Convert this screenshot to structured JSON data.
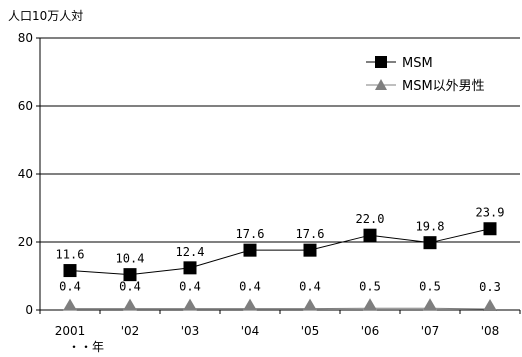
{
  "chart_data": {
    "type": "line",
    "ylabel": "人口10万人対",
    "xlabel": "年",
    "xlabel_prefix": "・・",
    "categories": [
      "2001",
      "'02",
      "'03",
      "'04",
      "'05",
      "'06",
      "'07",
      "'08"
    ],
    "ylim": [
      0,
      80
    ],
    "yticks": [
      0,
      20,
      40,
      60,
      80
    ],
    "grid": true,
    "legend_position": "top-right",
    "series": [
      {
        "name": "MSM",
        "marker": "square",
        "color": "#000000",
        "values": [
          11.6,
          10.4,
          12.4,
          17.6,
          17.6,
          22.0,
          19.8,
          23.9
        ],
        "labels": [
          "11.6",
          "10.4",
          "12.4",
          "17.6",
          "17.6",
          "22.0",
          "19.8",
          "23.9"
        ]
      },
      {
        "name": "MSM以外男性",
        "marker": "triangle",
        "color": "#7f7f7f",
        "values": [
          0.4,
          0.4,
          0.4,
          0.4,
          0.4,
          0.5,
          0.5,
          0.3
        ],
        "labels": [
          "0.4",
          "0.4",
          "0.4",
          "0.4",
          "0.4",
          "0.5",
          "0.5",
          "0.3"
        ]
      }
    ]
  }
}
